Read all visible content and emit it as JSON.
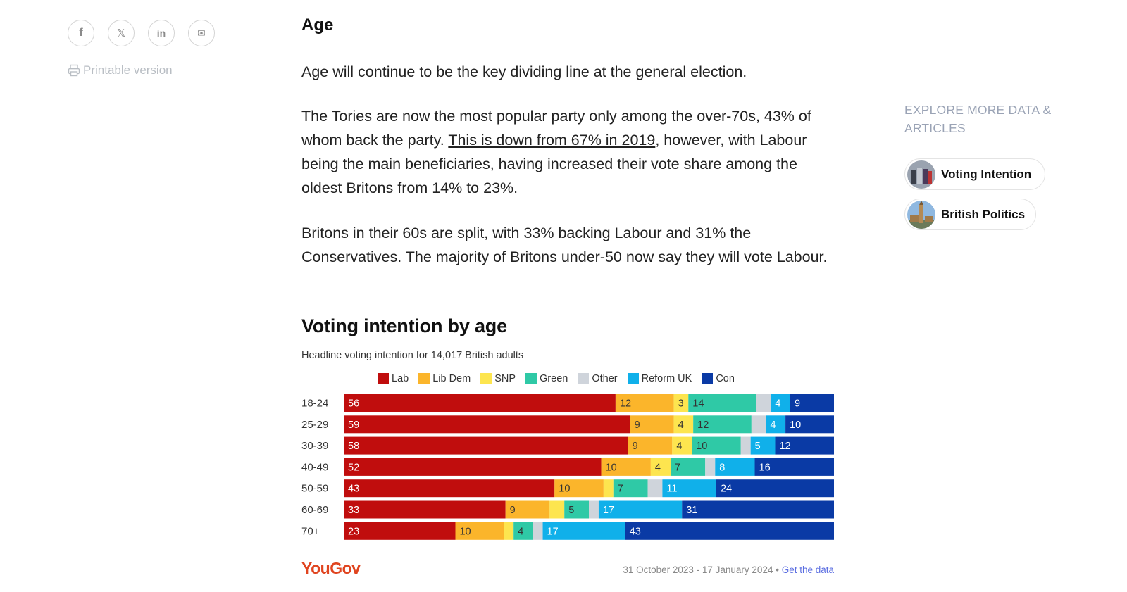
{
  "share": {
    "items": [
      {
        "name": "facebook-icon",
        "glyph": "f"
      },
      {
        "name": "x-icon",
        "glyph": "𝕏"
      },
      {
        "name": "linkedin-icon",
        "glyph": "in"
      },
      {
        "name": "mail-icon",
        "glyph": "✉"
      }
    ],
    "printable_label": "Printable version"
  },
  "article": {
    "heading": "Age",
    "p1": "Age will continue to be the key dividing line at the general election.",
    "p2_before": "The Tories are now the most popular party only among the over-70s, 43% of whom back the party. ",
    "p2_link": "This is down from 67% in 2019",
    "p2_after": ", however, with Labour being the main beneficiaries, having increased their vote share among the oldest Britons from 14% to 23%.",
    "p3": "Britons in their 60s are split, with 33% backing Labour and 31% the Conservatives. The majority of Britons under-50 now say they will vote Labour."
  },
  "chart_data": {
    "type": "bar",
    "stacked": true,
    "orientation": "horizontal",
    "title": "Voting intention by age",
    "subtitle": "Headline voting intention for 14,017 British adults",
    "categories": [
      "18-24",
      "25-29",
      "30-39",
      "40-49",
      "50-59",
      "60-69",
      "70+"
    ],
    "series": [
      {
        "name": "Lab",
        "color": "#c00d0d",
        "label_color": "#ffffff",
        "values": [
          56,
          59,
          58,
          52,
          43,
          33,
          23
        ]
      },
      {
        "name": "Lib Dem",
        "color": "#fbb52b",
        "label_color": "#333333",
        "values": [
          12,
          9,
          9,
          10,
          10,
          9,
          10
        ]
      },
      {
        "name": "SNP",
        "color": "#fde54f",
        "label_color": "#333333",
        "values": [
          3,
          4,
          4,
          4,
          2,
          3,
          2
        ]
      },
      {
        "name": "Green",
        "color": "#2fc9a6",
        "label_color": "#333333",
        "values": [
          14,
          12,
          10,
          7,
          7,
          5,
          4
        ]
      },
      {
        "name": "Other",
        "color": "#cfd4db",
        "label_color": "#333333",
        "values": [
          3,
          3,
          2,
          2,
          3,
          2,
          2
        ]
      },
      {
        "name": "Reform UK",
        "color": "#10b0ea",
        "label_color": "#ffffff",
        "values": [
          4,
          4,
          5,
          8,
          11,
          17,
          17
        ]
      },
      {
        "name": "Con",
        "color": "#0a3aa5",
        "label_color": "#ffffff",
        "values": [
          9,
          10,
          12,
          16,
          24,
          31,
          43
        ]
      }
    ],
    "value_labels": [
      [
        "56",
        "12",
        "3",
        "14",
        "",
        "4",
        "9"
      ],
      [
        "59",
        "9",
        "4",
        "12",
        "",
        "4",
        "10"
      ],
      [
        "58",
        "9",
        "4",
        "10",
        "",
        "5",
        "12"
      ],
      [
        "52",
        "10",
        "4",
        "7",
        "",
        "8",
        "16"
      ],
      [
        "43",
        "10",
        "",
        "7",
        "",
        "11",
        "24"
      ],
      [
        "33",
        "9",
        "",
        "5",
        "",
        "17",
        "31"
      ],
      [
        "23",
        "10",
        "",
        "4",
        "",
        "17",
        "43"
      ]
    ],
    "legend_position": "top",
    "grid": false
  },
  "footer": {
    "brand": "YouGov",
    "dates": "31 October 2023 - 17 January 2024 • ",
    "data_link": "Get the data"
  },
  "sidebar": {
    "explore_label": "EXPLORE MORE DATA & ARTICLES",
    "pills": [
      {
        "label": "Voting Intention"
      },
      {
        "label": "British Politics"
      }
    ]
  }
}
